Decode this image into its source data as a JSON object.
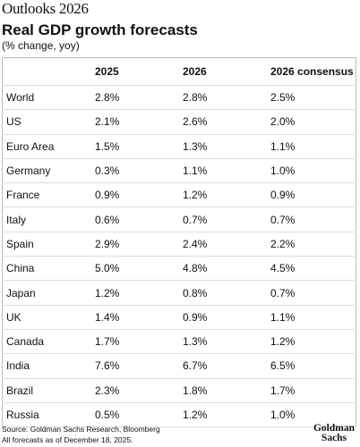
{
  "header": {
    "brand": "Outlooks 2026",
    "title": "Real GDP growth forecasts",
    "subtitle": "(% change, yoy)"
  },
  "table": {
    "columns": [
      "",
      "2025",
      "2026",
      "2026 consensus"
    ],
    "rows": [
      [
        "World",
        "2.8%",
        "2.8%",
        "2.5%"
      ],
      [
        "US",
        "2.1%",
        "2.6%",
        "2.0%"
      ],
      [
        "Euro Area",
        "1.5%",
        "1.3%",
        "1.1%"
      ],
      [
        "Germany",
        "0.3%",
        "1.1%",
        "1.0%"
      ],
      [
        "France",
        "0.9%",
        "1.2%",
        "0.9%"
      ],
      [
        "Italy",
        "0.6%",
        "0.7%",
        "0.7%"
      ],
      [
        "Spain",
        "2.9%",
        "2.4%",
        "2.2%"
      ],
      [
        "China",
        "5.0%",
        "4.8%",
        "4.5%"
      ],
      [
        "Japan",
        "1.2%",
        "0.8%",
        "0.7%"
      ],
      [
        "UK",
        "1.4%",
        "0.9%",
        "1.1%"
      ],
      [
        "Canada",
        "1.7%",
        "1.3%",
        "1.2%"
      ],
      [
        "India",
        "7.6%",
        "6.7%",
        "6.5%"
      ],
      [
        "Brazil",
        "2.3%",
        "1.8%",
        "1.7%"
      ],
      [
        "Russia",
        "0.5%",
        "1.2%",
        "1.0%"
      ]
    ]
  },
  "footer": {
    "source": "Source: Goldman Sachs Research, Bloomberg",
    "note": "All forecasts as of December 18, 2025.",
    "logo": [
      "Goldman",
      "Sachs"
    ]
  }
}
